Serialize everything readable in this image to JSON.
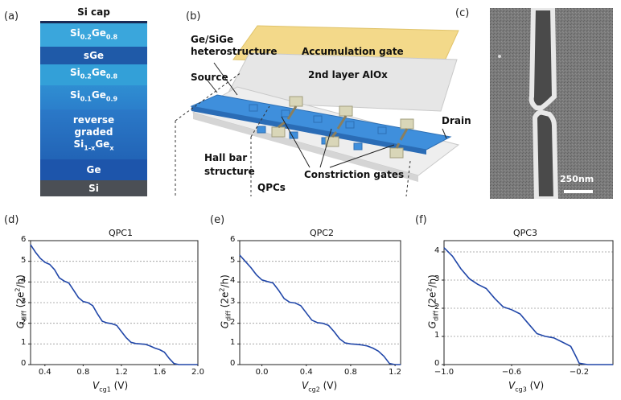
{
  "panels": {
    "a": "(a)",
    "b": "(b)",
    "c": "(c)",
    "d": "(d)",
    "e": "(e)",
    "f": "(f)"
  },
  "stack": {
    "si_cap": "Si cap",
    "sige08_top": "Si0.2Ge0.8",
    "sge": "sGe",
    "sige08_bottom": "Si0.2Ge0.8",
    "sige09": "Si0.1Ge0.9",
    "reverse": "reverse",
    "graded": "graded",
    "si1xgex": "Si1-xGex",
    "ge": "Ge",
    "si": "Si"
  },
  "device": {
    "accumulation_gate": "Accumulation gate",
    "alox_layer": "2nd layer AlOx",
    "heterostructure_l1": "Ge/SiGe",
    "heterostructure_l2": "heterostructure",
    "source": "Source",
    "drain": "Drain",
    "hall_bar_l1": "Hall bar",
    "hall_bar_l2": "structure",
    "qpcs": "QPCs",
    "constriction_gates": "Constriction gates"
  },
  "sem": {
    "scale_bar": "250nm"
  },
  "colors": {
    "stack_light": "#3aa6dc",
    "stack_dark": "#1f5aa8",
    "si_substrate": "#4b4f55",
    "gate_gold": "#f3d98a",
    "alox_gray": "#e4e4e4",
    "hall_blue": "#3f8fdc",
    "curve_blue": "#2046a8"
  },
  "chart_data": [
    {
      "type": "line",
      "title": "QPC1",
      "xlabel_main": "V",
      "xlabel_sub": "cg1",
      "xlabel_unit": " (V)",
      "ylabel": "Gdiff (2e2/h)",
      "xlim": [
        0.25,
        2.0
      ],
      "ylim": [
        0,
        6
      ],
      "xticks": [
        0.4,
        0.8,
        1.2,
        1.6,
        2.0
      ],
      "xticklabels": [
        "0.4",
        "0.8",
        "1.2",
        "1.6",
        "2.0"
      ],
      "yticks": [
        0,
        1,
        2,
        3,
        4,
        5,
        6
      ],
      "yticklabels": [
        "0",
        "1",
        "2",
        "3",
        "4",
        "5",
        "6"
      ],
      "grid_y": [
        1,
        2,
        3,
        4,
        5
      ],
      "series": [
        {
          "name": "QPC1",
          "x": [
            0.25,
            0.3,
            0.35,
            0.4,
            0.45,
            0.5,
            0.55,
            0.6,
            0.65,
            0.7,
            0.75,
            0.8,
            0.85,
            0.9,
            0.95,
            1.0,
            1.05,
            1.1,
            1.15,
            1.2,
            1.25,
            1.3,
            1.35,
            1.4,
            1.45,
            1.5,
            1.55,
            1.6,
            1.65,
            1.7,
            1.75,
            1.8,
            1.85,
            2.0
          ],
          "y": [
            5.8,
            5.45,
            5.15,
            4.95,
            4.85,
            4.6,
            4.2,
            4.05,
            3.95,
            3.6,
            3.25,
            3.05,
            3.0,
            2.85,
            2.45,
            2.1,
            2.02,
            1.98,
            1.9,
            1.6,
            1.3,
            1.08,
            1.02,
            1.0,
            0.98,
            0.9,
            0.8,
            0.72,
            0.6,
            0.3,
            0.05,
            0.0,
            0.0,
            0.0
          ]
        }
      ]
    },
    {
      "type": "line",
      "title": "QPC2",
      "xlabel_main": "V",
      "xlabel_sub": "cg2",
      "xlabel_unit": " (V)",
      "ylabel": "Gdiff (2e2/h)",
      "xlim": [
        -0.2,
        1.25
      ],
      "ylim": [
        0,
        6
      ],
      "xticks": [
        0.0,
        0.4,
        0.8,
        1.2
      ],
      "xticklabels": [
        "0.0",
        "0.4",
        "0.8",
        "1.2"
      ],
      "yticks": [
        0,
        1,
        2,
        3,
        4,
        5,
        6
      ],
      "yticklabels": [
        "0",
        "1",
        "2",
        "3",
        "4",
        "5",
        "6"
      ],
      "grid_y": [
        1,
        2,
        3,
        4,
        5
      ],
      "series": [
        {
          "name": "QPC2",
          "x": [
            -0.2,
            -0.15,
            -0.1,
            -0.05,
            0.0,
            0.05,
            0.1,
            0.15,
            0.2,
            0.25,
            0.3,
            0.35,
            0.4,
            0.45,
            0.5,
            0.55,
            0.6,
            0.65,
            0.7,
            0.75,
            0.8,
            0.85,
            0.9,
            0.95,
            1.0,
            1.05,
            1.1,
            1.15,
            1.2,
            1.25
          ],
          "y": [
            5.3,
            5.0,
            4.7,
            4.35,
            4.1,
            4.02,
            3.95,
            3.6,
            3.2,
            3.02,
            2.98,
            2.85,
            2.5,
            2.15,
            2.03,
            2.0,
            1.9,
            1.6,
            1.25,
            1.05,
            1.0,
            0.98,
            0.95,
            0.9,
            0.8,
            0.65,
            0.4,
            0.05,
            0.0,
            0.0
          ]
        }
      ]
    },
    {
      "type": "line",
      "title": "QPC3",
      "xlabel_main": "V",
      "xlabel_sub": "cg3",
      "xlabel_unit": " (V)",
      "ylabel": "Gdiff (2e2/h)",
      "xlim": [
        -1.0,
        0.0
      ],
      "ylim": [
        0,
        4.4
      ],
      "xticks": [
        -1.0,
        -0.6,
        -0.2
      ],
      "xticklabels": [
        "−1.0",
        "−0.6",
        "−0.2"
      ],
      "yticks": [
        0,
        1,
        2,
        3,
        4
      ],
      "yticklabels": [
        "0",
        "1",
        "2",
        "3",
        "4"
      ],
      "grid_y": [
        1,
        2,
        3,
        4
      ],
      "series": [
        {
          "name": "QPC3",
          "x": [
            -1.0,
            -0.95,
            -0.9,
            -0.85,
            -0.8,
            -0.75,
            -0.7,
            -0.65,
            -0.6,
            -0.55,
            -0.5,
            -0.45,
            -0.4,
            -0.35,
            -0.3,
            -0.25,
            -0.22,
            -0.2,
            -0.15,
            -0.1,
            0.0
          ],
          "y": [
            4.15,
            3.85,
            3.4,
            3.05,
            2.85,
            2.7,
            2.35,
            2.05,
            1.95,
            1.8,
            1.45,
            1.1,
            1.0,
            0.95,
            0.8,
            0.65,
            0.3,
            0.05,
            0.0,
            0.0,
            0.0
          ]
        }
      ]
    }
  ]
}
